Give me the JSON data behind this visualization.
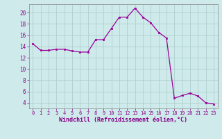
{
  "x": [
    0,
    1,
    2,
    3,
    4,
    5,
    6,
    7,
    8,
    9,
    10,
    11,
    12,
    13,
    14,
    15,
    16,
    17,
    18,
    19,
    20,
    21,
    22,
    23
  ],
  "y": [
    14.5,
    13.3,
    13.3,
    13.5,
    13.5,
    13.2,
    13.0,
    13.0,
    15.2,
    15.2,
    17.2,
    19.2,
    19.2,
    20.8,
    19.2,
    18.2,
    16.5,
    15.5,
    4.8,
    5.3,
    5.7,
    5.2,
    4.0,
    3.8
  ],
  "line_color": "#990099",
  "marker": "s",
  "markersize": 1.8,
  "linewidth": 0.9,
  "bg_color": "#ceeaea",
  "grid_color": "#b0d0d0",
  "xlabel": "Windchill (Refroidissement éolien,°C)",
  "xlabel_fontsize": 6.0,
  "yticks": [
    4,
    6,
    8,
    10,
    12,
    14,
    16,
    18,
    20
  ],
  "xticks": [
    0,
    1,
    2,
    3,
    4,
    5,
    6,
    7,
    8,
    9,
    10,
    11,
    12,
    13,
    14,
    15,
    16,
    17,
    18,
    19,
    20,
    21,
    22,
    23
  ],
  "ylim": [
    3.0,
    21.5
  ],
  "xlim": [
    -0.5,
    23.5
  ],
  "ytick_fontsize": 5.5,
  "xtick_fontsize": 5.0,
  "tick_color": "#880088",
  "label_color": "#880088"
}
